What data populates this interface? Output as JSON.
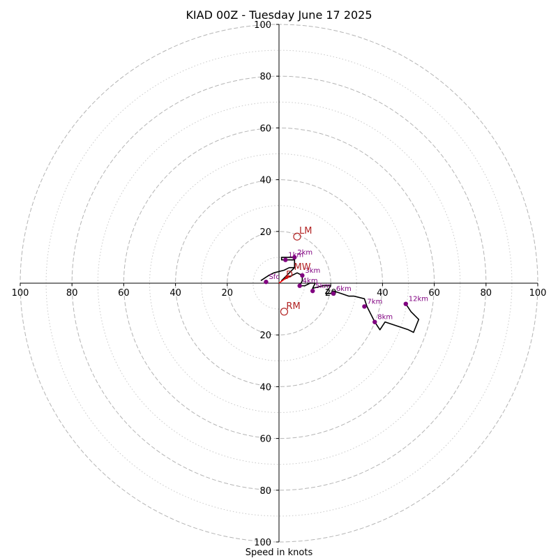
{
  "chart_data": {
    "type": "scatter",
    "title": "KIAD 00Z - Tuesday June 17 2025",
    "xlabel": "Speed in knots",
    "ylabel": "",
    "xlim": [
      -100,
      100
    ],
    "ylim": [
      -100,
      100
    ],
    "grid": true,
    "rings": [
      20,
      40,
      60,
      80,
      100
    ],
    "minor_rings": [
      10,
      30,
      50,
      70,
      90
    ],
    "tick_labels": {
      "x_left": [
        "100",
        "80",
        "60",
        "40",
        "20"
      ],
      "x_right": [
        "20",
        "40",
        "60",
        "80",
        "100"
      ],
      "y_top": [
        "100",
        "80",
        "60",
        "40",
        "20"
      ],
      "y_bottom": [
        "20",
        "40",
        "60",
        "80",
        "100"
      ]
    },
    "hodograph": {
      "color": "#000000",
      "points": [
        [
          -7,
          1
        ],
        [
          -4,
          3
        ],
        [
          -2,
          4
        ],
        [
          2,
          5
        ],
        [
          4,
          6
        ],
        [
          6,
          6
        ],
        [
          6,
          9
        ],
        [
          1,
          9
        ],
        [
          1,
          10
        ],
        [
          3,
          10
        ],
        [
          5,
          10
        ],
        [
          6,
          10
        ],
        [
          6,
          8
        ],
        [
          6,
          6
        ],
        [
          6,
          6
        ],
        [
          4,
          4
        ],
        [
          3,
          3
        ],
        [
          1,
          1
        ],
        [
          3,
          2
        ],
        [
          5,
          3
        ],
        [
          7,
          4
        ],
        [
          9,
          3
        ],
        [
          9,
          1
        ],
        [
          8,
          -1
        ],
        [
          10,
          -1
        ],
        [
          12,
          0
        ],
        [
          14,
          0
        ],
        [
          13,
          -2
        ],
        [
          17,
          -1
        ],
        [
          20,
          -1
        ],
        [
          18,
          -4
        ],
        [
          20,
          -4
        ],
        [
          21,
          -3
        ],
        [
          24,
          -4
        ],
        [
          27,
          -5
        ],
        [
          29,
          -5
        ],
        [
          33,
          -6
        ],
        [
          34,
          -9
        ],
        [
          37,
          -15
        ],
        [
          39,
          -18
        ],
        [
          41,
          -15
        ],
        [
          50,
          -18
        ],
        [
          52,
          -19
        ],
        [
          54,
          -14
        ],
        [
          51,
          -11
        ],
        [
          49,
          -8
        ]
      ]
    },
    "height_markers": {
      "color": "#800080",
      "points": [
        {
          "label": "Sfc",
          "x": -5,
          "y": 0.5
        },
        {
          "label": "1km",
          "x": 2.5,
          "y": 9
        },
        {
          "label": "2km",
          "x": 6,
          "y": 10
        },
        {
          "label": "3km",
          "x": 9,
          "y": 3
        },
        {
          "label": "4km",
          "x": 8,
          "y": -1
        },
        {
          "label": "5km",
          "x": 13,
          "y": -3
        },
        {
          "label": "6km",
          "x": 21,
          "y": -4
        },
        {
          "label": "7km",
          "x": 33,
          "y": -9
        },
        {
          "label": "8km",
          "x": 37,
          "y": -15
        },
        {
          "label": "12km",
          "x": 49,
          "y": -8
        }
      ]
    },
    "storm_motion": {
      "color": "#b22222",
      "points": [
        {
          "label": "LM",
          "x": 7,
          "y": 18
        },
        {
          "label": "RM",
          "x": 2,
          "y": -11
        },
        {
          "label": "MW",
          "x": 5,
          "y": 4
        }
      ],
      "arrow": {
        "label": "D",
        "from": [
          0,
          0
        ],
        "to": [
          4,
          3
        ],
        "color": "#ff0000"
      }
    }
  }
}
